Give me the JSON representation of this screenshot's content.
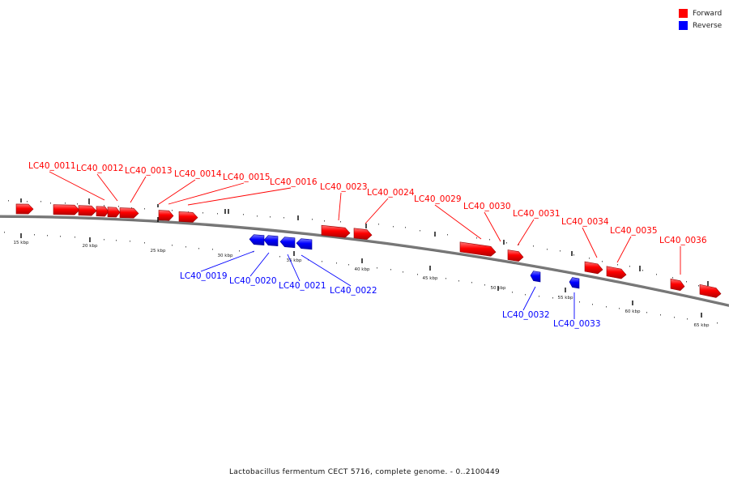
{
  "legend": {
    "forward_label": "Forward",
    "reverse_label": "Reverse",
    "forward_color": "#ff0000",
    "reverse_color": "#0000ff"
  },
  "caption": "Lactobacillus fermentum CECT 5716, complete genome. - 0..2100449",
  "genome": {
    "length_bp": 2100449,
    "tick_labels": [
      "15 kbp",
      "20 kbp",
      "25 kbp",
      "30 kbp",
      "35 kbp",
      "40 kbp",
      "45 kbp",
      "50 kbp",
      "55 kbp",
      "60 kbp",
      "65 kbp"
    ]
  },
  "genes": [
    {
      "id": "g1",
      "label": "",
      "strand": "forward"
    },
    {
      "id": "g2",
      "label": "LC40_0011",
      "strand": "forward"
    },
    {
      "id": "g3",
      "label": "LC40_0012",
      "strand": "forward"
    },
    {
      "id": "g4",
      "label": "",
      "strand": "forward"
    },
    {
      "id": "g5",
      "label": "",
      "strand": "forward"
    },
    {
      "id": "g6",
      "label": "LC40_0013",
      "strand": "forward"
    },
    {
      "id": "g7",
      "label": "LC40_0014",
      "strand": "forward"
    },
    {
      "id": "g8",
      "label": "LC40_0015",
      "strand": "forward"
    },
    {
      "id": "g9",
      "label": "LC40_0016",
      "strand": "forward"
    },
    {
      "id": "g10",
      "label": "LC40_0019",
      "strand": "reverse"
    },
    {
      "id": "g11",
      "label": "LC40_0020",
      "strand": "reverse"
    },
    {
      "id": "g12",
      "label": "LC40_0021",
      "strand": "reverse"
    },
    {
      "id": "g13",
      "label": "LC40_0022",
      "strand": "reverse"
    },
    {
      "id": "g14",
      "label": "LC40_0023",
      "strand": "forward"
    },
    {
      "id": "g15",
      "label": "LC40_0024",
      "strand": "forward"
    },
    {
      "id": "g16",
      "label": "LC40_0029",
      "strand": "forward"
    },
    {
      "id": "g17",
      "label": "LC40_0030",
      "strand": "forward"
    },
    {
      "id": "g18",
      "label": "LC40_0031",
      "strand": "forward"
    },
    {
      "id": "g19",
      "label": "LC40_0032",
      "strand": "reverse"
    },
    {
      "id": "g20",
      "label": "LC40_0033",
      "strand": "reverse"
    },
    {
      "id": "g21",
      "label": "LC40_0034",
      "strand": "forward"
    },
    {
      "id": "g22",
      "label": "LC40_0035",
      "strand": "forward"
    },
    {
      "id": "g23",
      "label": "LC40_0036",
      "strand": "forward"
    },
    {
      "id": "g24",
      "label": "",
      "strand": "forward"
    }
  ]
}
